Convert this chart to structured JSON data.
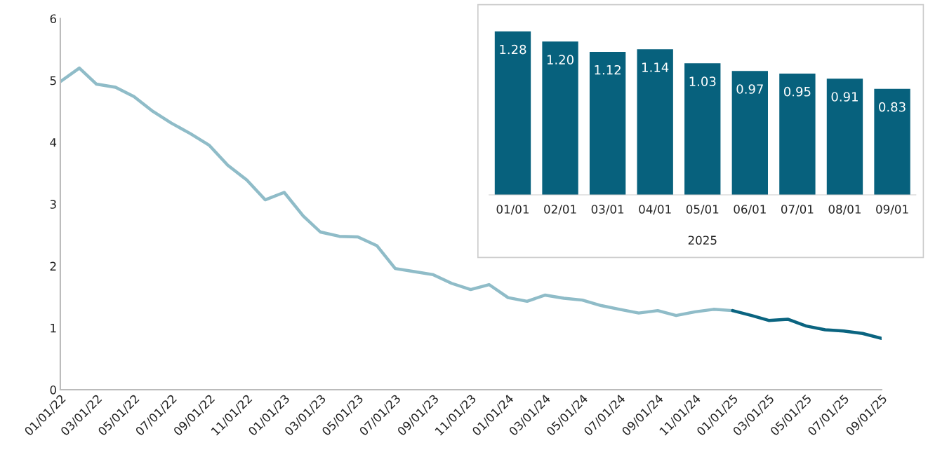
{
  "chart_data": [
    {
      "type": "line",
      "ylim": [
        0,
        6
      ],
      "yticks": [
        0,
        1,
        2,
        3,
        4,
        5,
        6
      ],
      "xlim": [
        "2022-01-01",
        "2025-09-01"
      ],
      "xticks": [
        {
          "value": "2022-01-01",
          "label": "01/01/22"
        },
        {
          "value": "2022-03-01",
          "label": "03/01/22"
        },
        {
          "value": "2022-05-01",
          "label": "05/01/22"
        },
        {
          "value": "2022-07-01",
          "label": "07/01/22"
        },
        {
          "value": "2022-09-01",
          "label": "09/01/22"
        },
        {
          "value": "2022-11-01",
          "label": "11/01/22"
        },
        {
          "value": "2023-01-01",
          "label": "01/01/23"
        },
        {
          "value": "2023-03-01",
          "label": "03/01/23"
        },
        {
          "value": "2023-05-01",
          "label": "05/01/23"
        },
        {
          "value": "2023-07-01",
          "label": "07/01/23"
        },
        {
          "value": "2023-09-01",
          "label": "09/01/23"
        },
        {
          "value": "2023-11-01",
          "label": "11/01/23"
        },
        {
          "value": "2024-01-01",
          "label": "01/01/24"
        },
        {
          "value": "2024-03-01",
          "label": "03/01/24"
        },
        {
          "value": "2024-05-01",
          "label": "05/01/24"
        },
        {
          "value": "2024-07-01",
          "label": "07/01/24"
        },
        {
          "value": "2024-09-01",
          "label": "09/01/24"
        },
        {
          "value": "2024-11-01",
          "label": "11/01/24"
        },
        {
          "value": "2025-01-01",
          "label": "01/01/25"
        },
        {
          "value": "2025-03-01",
          "label": "03/01/25"
        },
        {
          "value": "2025-05-01",
          "label": "05/01/25"
        },
        {
          "value": "2025-07-01",
          "label": "07/01/25"
        },
        {
          "value": "2025-09-01",
          "label": "09/01/25"
        }
      ],
      "marker": "none",
      "line_style": "solid",
      "series": [
        {
          "color": "#8fbcc8",
          "x": [
            "2022-01-01",
            "2022-02-01",
            "2022-03-01",
            "2022-04-01",
            "2022-05-01",
            "2022-06-01",
            "2022-07-01",
            "2022-08-01",
            "2022-09-01",
            "2022-10-01",
            "2022-11-01",
            "2022-12-01",
            "2023-01-01",
            "2023-02-01",
            "2023-03-01",
            "2023-04-01",
            "2023-05-01",
            "2023-06-01",
            "2023-07-01",
            "2023-08-01",
            "2023-09-01",
            "2023-10-01",
            "2023-11-01",
            "2023-12-01",
            "2024-01-01",
            "2024-02-01",
            "2024-03-01",
            "2024-04-01",
            "2024-05-01",
            "2024-06-01",
            "2024-07-01",
            "2024-08-01",
            "2024-09-01",
            "2024-10-01",
            "2024-11-01",
            "2024-12-01",
            "2025-01-01"
          ],
          "values": [
            4.98,
            5.2,
            4.94,
            4.89,
            4.74,
            4.5,
            4.31,
            4.14,
            3.95,
            3.63,
            3.39,
            3.07,
            3.19,
            2.81,
            2.55,
            2.48,
            2.47,
            2.33,
            1.96,
            1.91,
            1.86,
            1.72,
            1.62,
            1.7,
            1.49,
            1.43,
            1.53,
            1.48,
            1.45,
            1.36,
            1.3,
            1.24,
            1.28,
            1.2,
            1.26,
            1.3,
            1.28
          ]
        },
        {
          "color": "#0a6480",
          "x": [
            "2025-01-01",
            "2025-02-01",
            "2025-03-01",
            "2025-04-01",
            "2025-05-01",
            "2025-06-01",
            "2025-07-01",
            "2025-08-01",
            "2025-09-01"
          ],
          "values": [
            1.28,
            1.2,
            1.12,
            1.14,
            1.03,
            0.97,
            0.95,
            0.91,
            0.83
          ]
        }
      ]
    },
    {
      "type": "bar",
      "categories": [
        "01/01",
        "02/01",
        "03/01",
        "04/01",
        "05/01",
        "06/01",
        "07/01",
        "08/01",
        "09/01"
      ],
      "values": [
        1.28,
        1.2,
        1.12,
        1.14,
        1.03,
        0.97,
        0.95,
        0.91,
        0.83
      ],
      "value_labels": [
        "1.28",
        "1.20",
        "1.12",
        "1.14",
        "1.03",
        "0.97",
        "0.95",
        "0.91",
        "0.83"
      ],
      "color": "#07617d",
      "tick_labels": "x",
      "annotations": [
        "2025"
      ]
    }
  ]
}
